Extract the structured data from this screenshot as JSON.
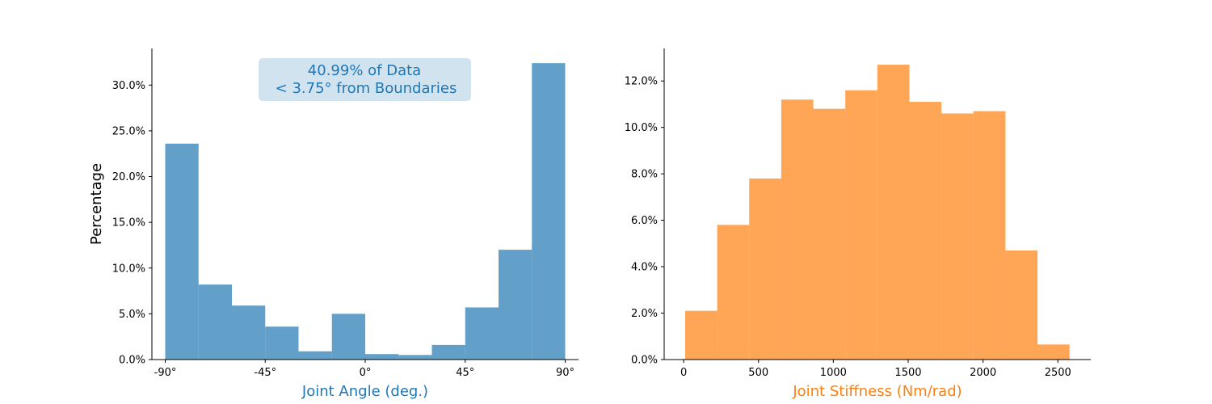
{
  "chart_data": [
    {
      "type": "bar",
      "subtype": "histogram",
      "color": "#1f77b4",
      "bar_opacity": 0.7,
      "xlabel": "Joint Angle (deg.)",
      "xlabel_color": "#1f77b4",
      "ylabel": "Percentage",
      "xlim": [
        -96,
        96
      ],
      "ylim": [
        0,
        34
      ],
      "x_ticks": [
        -90,
        -45,
        0,
        45,
        90
      ],
      "x_tick_labels": [
        "-90$^\\circ$",
        "-45$^\\circ$",
        "0$^\\circ$",
        "45$^\\circ$",
        "90$^\\circ$"
      ],
      "x_tick_display": [
        "-90°",
        "-45°",
        "0°",
        "45°",
        "90°"
      ],
      "y_ticks": [
        0,
        5,
        10,
        15,
        20,
        25,
        30
      ],
      "y_tick_labels": [
        "0.0%",
        "5.0%",
        "10.0%",
        "15.0%",
        "20.0%",
        "25.0%",
        "30.0%"
      ],
      "bin_edges": [
        -90,
        -75,
        -60,
        -45,
        -30,
        -15,
        0,
        15,
        30,
        45,
        60,
        75,
        90
      ],
      "values": [
        23.6,
        8.2,
        5.9,
        3.6,
        0.9,
        5.0,
        0.6,
        0.5,
        1.6,
        5.7,
        12.0,
        32.4
      ],
      "annotation": {
        "line1": "40.99% of Data",
        "line2": "< 3.75$^\\circ$ from Boundaries",
        "display_line1": "40.99% of Data",
        "display_line2": "< 3.75°  from Boundaries",
        "text_color": "#1f77b4",
        "box_color": "#d2e3f0"
      },
      "grid": false
    },
    {
      "type": "bar",
      "subtype": "histogram",
      "color": "#ff7f0e",
      "bar_opacity": 0.7,
      "xlabel": "Joint Stiffness (Nm/rad)",
      "xlabel_color": "#ff7f0e",
      "ylabel": "",
      "xlim": [
        -130,
        2720
      ],
      "ylim": [
        0,
        13.4
      ],
      "x_ticks": [
        0,
        500,
        1000,
        1500,
        2000,
        2500
      ],
      "x_tick_labels": [
        "0",
        "500",
        "1000",
        "1500",
        "2000",
        "2500"
      ],
      "y_ticks": [
        0,
        2,
        4,
        6,
        8,
        10,
        12
      ],
      "y_tick_labels": [
        "0.0%",
        "2.0%",
        "4.0%",
        "6.0%",
        "8.0%",
        "10.0%",
        "12.0%"
      ],
      "bin_edges": [
        10,
        224,
        438,
        652,
        866,
        1080,
        1294,
        1508,
        1722,
        1936,
        2150,
        2364,
        2578
      ],
      "values": [
        2.1,
        5.8,
        7.8,
        11.2,
        10.8,
        11.6,
        12.7,
        11.1,
        10.6,
        10.7,
        4.7,
        0.65
      ],
      "grid": false
    }
  ]
}
